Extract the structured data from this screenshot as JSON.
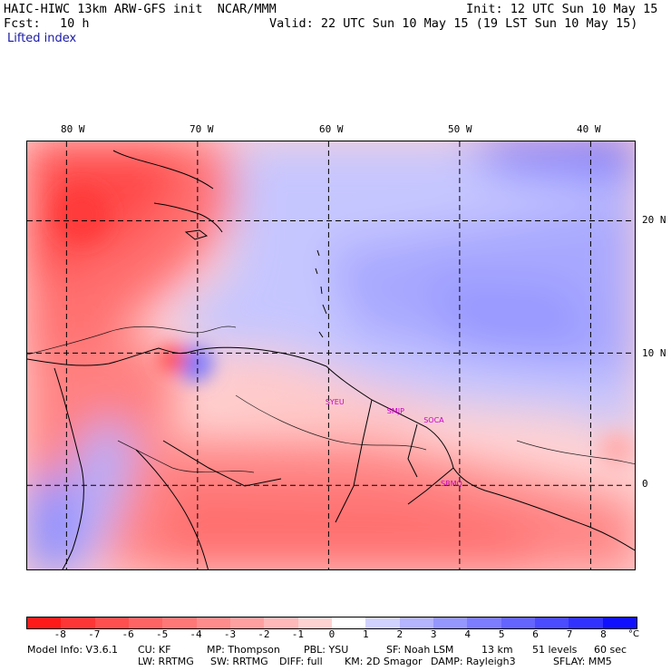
{
  "header": {
    "model_line": "HAIC-HIWC 13km ARW-GFS init  NCAR/MMM",
    "init_line": "Init: 12 UTC Sun 10 May 15",
    "fcst_label": "Fcst:",
    "fcst_value": "10 h",
    "valid_line": "Valid: 22 UTC Sun 10 May 15 (19 LST Sun 10 May 15)",
    "field_name": "Lifted index"
  },
  "map": {
    "lon_labels": [
      "80 W",
      "70 W",
      "60 W",
      "50 W",
      "40 W"
    ],
    "lon_values": [
      -80,
      -70,
      -60,
      -50,
      -40
    ],
    "lat_labels": [
      "20 N",
      "10 N",
      "0"
    ],
    "lat_values": [
      20,
      10,
      0
    ],
    "lon_range": [
      -83,
      -36.5
    ],
    "lat_range": [
      -6.5,
      26
    ],
    "stations": [
      {
        "id": "SYEU",
        "lon": -59.9,
        "lat": 6.2
      },
      {
        "id": "SMJP",
        "lon": -55.2,
        "lat": 5.5
      },
      {
        "id": "SOCA",
        "lon": -52.4,
        "lat": 4.8
      },
      {
        "id": "SBMQ",
        "lon": -51.1,
        "lat": 0.0
      }
    ]
  },
  "colorbar": {
    "tick_labels": [
      "-8",
      "-7",
      "-6",
      "-5",
      "-4",
      "-3",
      "-2",
      "-1",
      "0",
      "1",
      "2",
      "3",
      "4",
      "5",
      "6",
      "7",
      "8"
    ],
    "unit": "°C",
    "colors": [
      "#ff1a1a",
      "#ff3636",
      "#ff4f4f",
      "#ff6464",
      "#ff7878",
      "#ff8c8c",
      "#ffa0a0",
      "#ffb9b9",
      "#ffd2d2",
      "#ffffff",
      "#d2d2ff",
      "#b4b4ff",
      "#9696ff",
      "#7d7dff",
      "#6464ff",
      "#4b4bff",
      "#3232ff",
      "#1010ff"
    ]
  },
  "footer": {
    "line1": [
      "Model Info: V3.6.1",
      "CU: KF",
      "MP: Thompson",
      "PBL: YSU",
      "SF: Noah LSM",
      "13 km",
      "51 levels",
      "60 sec"
    ],
    "line2": [
      "LW: RRTMG",
      "SW: RRTMG",
      "DIFF: full",
      "KM: 2D Smagor",
      "DAMP: Rayleigh3",
      "SFLAY: MM5"
    ]
  },
  "colors": {
    "header_title": "#000000",
    "field_name": "#1a1aa6",
    "station_label": "#c800c8"
  }
}
